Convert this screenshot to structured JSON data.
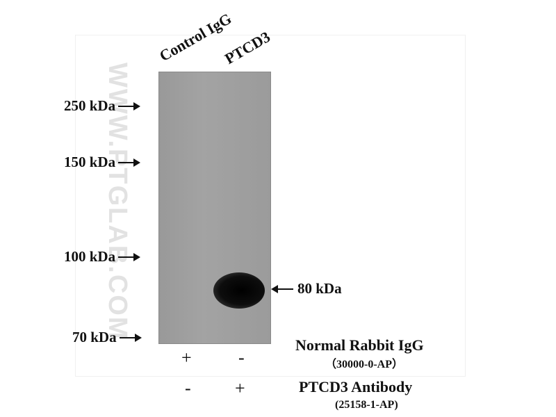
{
  "lanes": [
    "Control IgG",
    "PTCD3"
  ],
  "markers": [
    "250 kDa",
    "150 kDa",
    "100 kDa",
    "70 kDa"
  ],
  "band_label": "80 kDa",
  "watermark": "WWW.PTGLAB.COM",
  "rows": [
    {
      "label": "Normal Rabbit IgG",
      "catalog": "（30000-0-AP）",
      "signs": [
        "+",
        "-"
      ]
    },
    {
      "label": "PTCD3 Antibody",
      "catalog": "(25158-1-AP)",
      "signs": [
        "-",
        "+"
      ]
    }
  ]
}
